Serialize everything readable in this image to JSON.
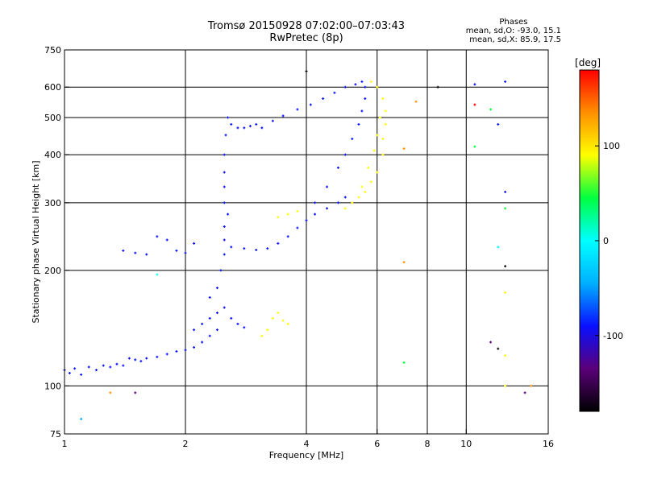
{
  "header": {
    "title_line1": "Tromsø 20150928 07:02:00–07:03:43",
    "title_line2": "RwPretec (8p)"
  },
  "phases_box": {
    "title": "Phases",
    "line_o": "mean, sd,O:  -93.0, 15.1",
    "line_x": "mean, sd,X:  85.9, 17.5"
  },
  "chart_data": {
    "type": "scatter",
    "xlabel": "Frequency [MHz]",
    "ylabel": "Stationary phase Virtual Height [km]",
    "x_scale": "log",
    "y_scale": "log",
    "xlim": [
      1,
      16
    ],
    "ylim": [
      75,
      750
    ],
    "x_ticks": [
      1,
      2,
      4,
      6,
      8,
      10,
      16
    ],
    "y_ticks": [
      75,
      100,
      200,
      300,
      400,
      500,
      600,
      750
    ],
    "x_gridlines": [
      2,
      4,
      6,
      8,
      10
    ],
    "y_gridlines": [
      100,
      200,
      300,
      400,
      500,
      600
    ],
    "grid": true,
    "colorbar": {
      "label": "[deg]",
      "range": [
        -180,
        180
      ],
      "ticks": [
        100,
        0,
        -100
      ],
      "colors": [
        "#000000",
        "#5a007a",
        "#0a10ff",
        "#00b0ff",
        "#00ffff",
        "#00ff40",
        "#ffff00",
        "#ff9000",
        "#ff0000"
      ]
    },
    "series": [
      {
        "mode": "O",
        "phase_mean": -93.0,
        "phase_sd": 15.1,
        "points": [
          [
            1.0,
            110
          ],
          [
            1.03,
            108
          ],
          [
            1.06,
            111
          ],
          [
            1.1,
            107
          ],
          [
            1.15,
            112
          ],
          [
            1.2,
            110
          ],
          [
            1.25,
            113
          ],
          [
            1.3,
            112
          ],
          [
            1.35,
            114
          ],
          [
            1.4,
            113
          ],
          [
            1.45,
            118
          ],
          [
            1.5,
            117
          ],
          [
            1.55,
            116
          ],
          [
            1.6,
            118
          ],
          [
            1.7,
            119
          ],
          [
            1.8,
            121
          ],
          [
            1.9,
            123
          ],
          [
            2.0,
            124
          ],
          [
            2.1,
            126
          ],
          [
            2.2,
            130
          ],
          [
            2.3,
            135
          ],
          [
            2.4,
            140
          ],
          [
            2.1,
            140
          ],
          [
            2.2,
            145
          ],
          [
            2.3,
            150
          ],
          [
            2.4,
            155
          ],
          [
            2.5,
            160
          ],
          [
            2.6,
            150
          ],
          [
            2.7,
            145
          ],
          [
            2.8,
            142
          ],
          [
            2.3,
            170
          ],
          [
            2.4,
            180
          ],
          [
            2.45,
            200
          ],
          [
            2.5,
            220
          ],
          [
            2.5,
            240
          ],
          [
            2.5,
            260
          ],
          [
            2.55,
            280
          ],
          [
            2.5,
            300
          ],
          [
            2.5,
            330
          ],
          [
            2.5,
            360
          ],
          [
            2.5,
            400
          ],
          [
            2.52,
            450
          ],
          [
            2.55,
            500
          ],
          [
            2.6,
            480
          ],
          [
            2.7,
            470
          ],
          [
            2.8,
            470
          ],
          [
            2.9,
            475
          ],
          [
            3.0,
            480
          ],
          [
            2.6,
            230
          ],
          [
            2.8,
            228
          ],
          [
            3.0,
            226
          ],
          [
            3.2,
            228
          ],
          [
            3.4,
            235
          ],
          [
            3.6,
            245
          ],
          [
            3.8,
            258
          ],
          [
            4.0,
            270
          ],
          [
            4.2,
            280
          ],
          [
            4.5,
            290
          ],
          [
            4.8,
            300
          ],
          [
            5.0,
            310
          ],
          [
            4.2,
            300
          ],
          [
            4.5,
            330
          ],
          [
            4.8,
            370
          ],
          [
            5.0,
            400
          ],
          [
            5.2,
            440
          ],
          [
            5.4,
            480
          ],
          [
            5.5,
            520
          ],
          [
            5.6,
            560
          ],
          [
            5.6,
            600
          ],
          [
            5.5,
            620
          ],
          [
            5.3,
            610
          ],
          [
            5.0,
            600
          ],
          [
            4.7,
            580
          ],
          [
            4.4,
            560
          ],
          [
            4.1,
            540
          ],
          [
            3.8,
            525
          ],
          [
            3.5,
            505
          ],
          [
            3.3,
            490
          ],
          [
            3.1,
            470
          ],
          [
            1.4,
            225
          ],
          [
            1.5,
            222
          ],
          [
            1.6,
            220
          ],
          [
            1.7,
            245
          ],
          [
            1.8,
            240
          ],
          [
            1.9,
            225
          ],
          [
            2.0,
            222
          ],
          [
            2.1,
            235
          ]
        ]
      },
      {
        "mode": "X",
        "phase_mean": 85.9,
        "phase_sd": 17.5,
        "points": [
          [
            3.1,
            135
          ],
          [
            3.2,
            140
          ],
          [
            3.3,
            150
          ],
          [
            3.4,
            155
          ],
          [
            3.5,
            148
          ],
          [
            3.6,
            145
          ],
          [
            3.4,
            275
          ],
          [
            3.6,
            280
          ],
          [
            3.8,
            285
          ],
          [
            5.0,
            290
          ],
          [
            5.2,
            300
          ],
          [
            5.4,
            310
          ],
          [
            5.6,
            320
          ],
          [
            5.8,
            340
          ],
          [
            6.0,
            360
          ],
          [
            6.2,
            400
          ],
          [
            6.2,
            440
          ],
          [
            6.3,
            480
          ],
          [
            6.3,
            520
          ],
          [
            6.2,
            560
          ],
          [
            6.0,
            600
          ],
          [
            5.8,
            620
          ],
          [
            5.5,
            330
          ],
          [
            5.7,
            370
          ],
          [
            5.9,
            410
          ],
          [
            6.0,
            450
          ],
          [
            6.1,
            500
          ]
        ]
      },
      {
        "mode": "noise",
        "points": [
          [
            1.1,
            82
          ],
          [
            1.3,
            96
          ],
          [
            1.5,
            96
          ],
          [
            1.7,
            195
          ],
          [
            4.0,
            660
          ],
          [
            7.0,
            210
          ],
          [
            7.0,
            115
          ],
          [
            7.5,
            550
          ],
          [
            8.5,
            600
          ],
          [
            7.0,
            415
          ],
          [
            10.5,
            610
          ],
          [
            10.5,
            540
          ],
          [
            10.5,
            420
          ],
          [
            11.5,
            525
          ],
          [
            12.0,
            480
          ],
          [
            12.5,
            620
          ],
          [
            12.5,
            320
          ],
          [
            12.5,
            290
          ],
          [
            12.5,
            205
          ],
          [
            12.5,
            175
          ],
          [
            12.5,
            120
          ],
          [
            12.5,
            100
          ],
          [
            12.0,
            230
          ],
          [
            12.0,
            125
          ],
          [
            11.5,
            130
          ],
          [
            14.5,
            100
          ],
          [
            14.0,
            96
          ]
        ]
      }
    ]
  }
}
